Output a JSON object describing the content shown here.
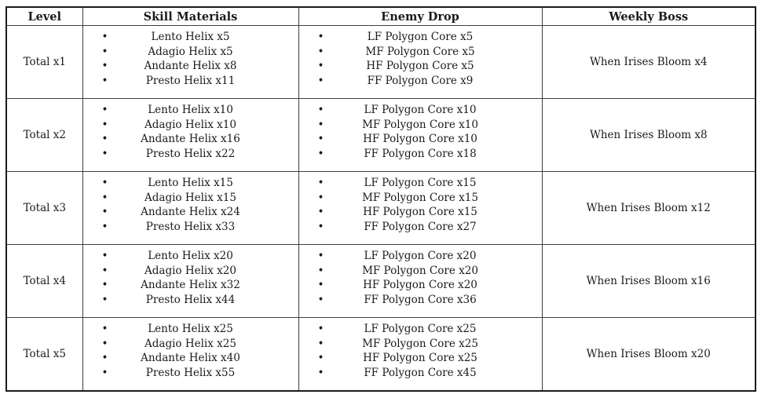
{
  "colors": {
    "background": "#ffffff",
    "border_outer": "#1b1b1b",
    "border_inner": "#3d3d3d",
    "text": "#1b1b1b"
  },
  "table": {
    "headers": [
      "Level",
      "Skill Materials",
      "Enemy Drop",
      "Weekly Boss"
    ],
    "bullet_glyph": "•",
    "rows": [
      {
        "level": "Total x1",
        "skill_materials": [
          "Lento Helix x5",
          "Adagio Helix x5",
          "Andante Helix x8",
          "Presto Helix x11"
        ],
        "enemy_drop": [
          "LF Polygon Core x5",
          "MF Polygon Core x5",
          "HF Polygon Core x5",
          "FF Polygon Core x9"
        ],
        "weekly_boss": "When Irises Bloom x4"
      },
      {
        "level": "Total x2",
        "skill_materials": [
          "Lento Helix x10",
          "Adagio Helix x10",
          "Andante Helix x16",
          "Presto Helix x22"
        ],
        "enemy_drop": [
          "LF Polygon Core x10",
          "MF Polygon Core x10",
          "HF Polygon Core x10",
          "FF Polygon Core x18"
        ],
        "weekly_boss": "When Irises Bloom x8"
      },
      {
        "level": "Total x3",
        "skill_materials": [
          "Lento Helix x15",
          "Adagio Helix x15",
          "Andante Helix x24",
          "Presto Helix x33"
        ],
        "enemy_drop": [
          "LF Polygon Core x15",
          "MF Polygon Core x15",
          "HF Polygon Core x15",
          "FF Polygon Core x27"
        ],
        "weekly_boss": "When Irises Bloom x12"
      },
      {
        "level": "Total x4",
        "skill_materials": [
          "Lento Helix x20",
          "Adagio Helix x20",
          "Andante Helix x32",
          "Presto Helix x44"
        ],
        "enemy_drop": [
          "LF Polygon Core x20",
          "MF Polygon Core x20",
          "HF Polygon Core x20",
          "FF Polygon Core x36"
        ],
        "weekly_boss": "When Irises Bloom x16"
      },
      {
        "level": "Total x5",
        "skill_materials": [
          "Lento Helix x25",
          "Adagio Helix x25",
          "Andante Helix x40",
          "Presto Helix x55"
        ],
        "enemy_drop": [
          "LF Polygon Core x25",
          "MF Polygon Core x25",
          "HF Polygon Core x25",
          "FF Polygon Core x45"
        ],
        "weekly_boss": "When Irises Bloom x20"
      }
    ]
  }
}
